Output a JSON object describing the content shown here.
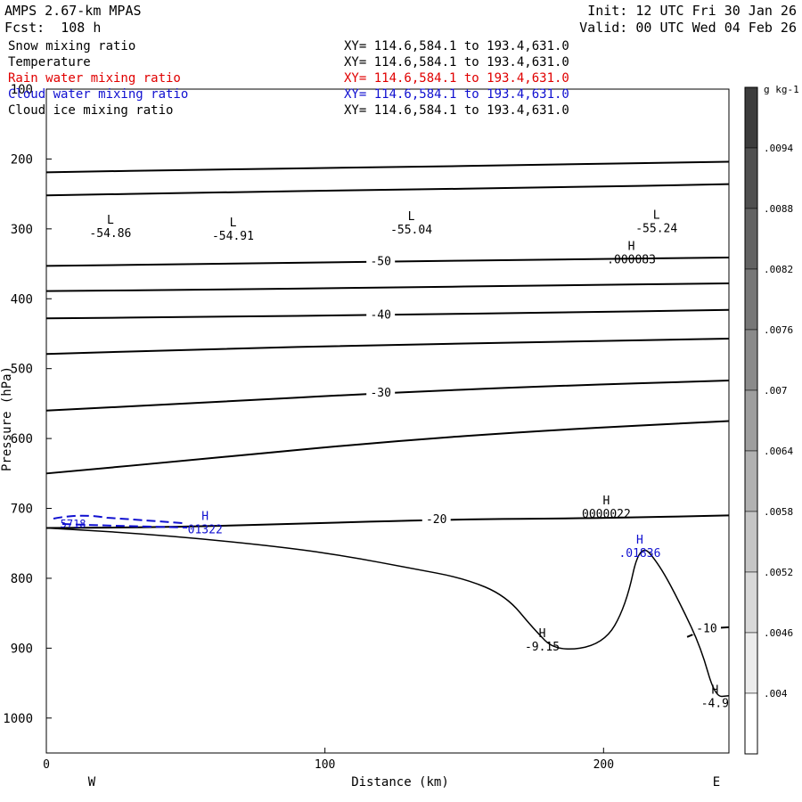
{
  "header": {
    "model": "AMPS 2.67-km MPAS",
    "init": "Init: 12 UTC Fri 30 Jan 26",
    "forecast": "Fcst:  108 h",
    "valid": "Valid: 00 UTC Wed 04 Feb 26"
  },
  "fields": [
    {
      "name": "Snow mixing ratio",
      "xy": "XY= 114.6,584.1 to 193.4,631.0",
      "color": "#000000"
    },
    {
      "name": "Temperature",
      "xy": "XY= 114.6,584.1 to 193.4,631.0",
      "color": "#000000"
    },
    {
      "name": "Rain water mixing ratio",
      "xy": "XY= 114.6,584.1 to 193.4,631.0",
      "color": "#e00000"
    },
    {
      "name": "Cloud water mixing ratio",
      "xy": "XY= 114.6,584.1 to 193.4,631.0",
      "color": "#1010d0"
    },
    {
      "name": "Cloud ice mixing ratio",
      "xy": "XY= 114.6,584.1 to 193.4,631.0",
      "color": "#000000"
    }
  ],
  "chart_data": {
    "type": "cross-section-contour",
    "xlabel": "Distance (km)",
    "ylabel": "Pressure (hPa)",
    "xlim": [
      0,
      245
    ],
    "ylim": [
      1050,
      100
    ],
    "x_ticks": [
      0,
      100,
      200
    ],
    "y_ticks": [
      100,
      200,
      300,
      400,
      500,
      600,
      700,
      800,
      900,
      1000
    ],
    "direction_labels": {
      "left": "W",
      "right": "E"
    },
    "temperature_isotherms": [
      {
        "label": "",
        "points": [
          [
            0,
            219
          ],
          [
            60,
            215
          ],
          [
            120,
            212
          ],
          [
            180,
            208
          ],
          [
            245,
            204
          ]
        ]
      },
      {
        "label": "",
        "points": [
          [
            0,
            252
          ],
          [
            60,
            248
          ],
          [
            120,
            244
          ],
          [
            180,
            241
          ],
          [
            245,
            236
          ]
        ]
      },
      {
        "label": "-50",
        "points": [
          [
            0,
            353
          ],
          [
            60,
            350
          ],
          [
            120,
            347
          ],
          [
            180,
            344
          ],
          [
            245,
            341
          ]
        ]
      },
      {
        "label": "",
        "points": [
          [
            0,
            389
          ],
          [
            60,
            387
          ],
          [
            120,
            384
          ],
          [
            180,
            381
          ],
          [
            245,
            378
          ]
        ]
      },
      {
        "label": "-40",
        "points": [
          [
            0,
            428
          ],
          [
            60,
            426
          ],
          [
            120,
            423
          ],
          [
            180,
            420
          ],
          [
            245,
            416
          ]
        ]
      },
      {
        "label": "",
        "points": [
          [
            0,
            479
          ],
          [
            60,
            472
          ],
          [
            120,
            466
          ],
          [
            180,
            462
          ],
          [
            245,
            457
          ]
        ]
      },
      {
        "label": "-30",
        "points": [
          [
            0,
            560
          ],
          [
            60,
            548
          ],
          [
            120,
            535
          ],
          [
            180,
            525
          ],
          [
            245,
            517
          ]
        ]
      },
      {
        "label": "",
        "points": [
          [
            0,
            650
          ],
          [
            60,
            628
          ],
          [
            120,
            605
          ],
          [
            180,
            588
          ],
          [
            245,
            575
          ]
        ]
      },
      {
        "label": "-20",
        "points": [
          [
            0,
            728
          ],
          [
            40,
            727
          ],
          [
            92,
            722
          ],
          [
            140,
            716
          ],
          [
            200,
            714
          ],
          [
            245,
            710
          ]
        ]
      },
      {
        "label": "-10",
        "points": [
          [
            230,
            884
          ],
          [
            237,
            872
          ],
          [
            245,
            870
          ]
        ]
      }
    ],
    "terrain_contour": [
      [
        0,
        728
      ],
      [
        30,
        735
      ],
      [
        60,
        745
      ],
      [
        90,
        758
      ],
      [
        110,
        770
      ],
      [
        130,
        785
      ],
      [
        150,
        800
      ],
      [
        165,
        825
      ],
      [
        175,
        873
      ],
      [
        183,
        905
      ],
      [
        200,
        895
      ],
      [
        208,
        840
      ],
      [
        213,
        748
      ],
      [
        220,
        780
      ],
      [
        228,
        840
      ],
      [
        235,
        900
      ],
      [
        240,
        970
      ],
      [
        245,
        968
      ]
    ],
    "mixing_ratio_colorbar": {
      "unit": "g kg-1",
      "ticks": [
        ".0094",
        ".0088",
        ".0082",
        ".0076",
        ".007",
        ".0064",
        ".0058",
        ".0052",
        ".0046",
        ".004"
      ]
    },
    "annotations": [
      {
        "type": "L",
        "value": "-54.86",
        "x": 23,
        "p": 300,
        "color": "#000000"
      },
      {
        "type": "L",
        "value": "-54.91",
        "x": 67,
        "p": 304,
        "color": "#000000"
      },
      {
        "type": "L",
        "value": "-55.04",
        "x": 131,
        "p": 295,
        "color": "#000000"
      },
      {
        "type": "L",
        "value": "-55.24",
        "x": 219,
        "p": 293,
        "color": "#000000"
      },
      {
        "type": "H",
        "value": ".000083",
        "x": 210,
        "p": 338,
        "color": "#000000"
      },
      {
        "type": "H",
        "value": "0000022",
        "x": 201,
        "p": 702,
        "color": "#000000"
      },
      {
        "type": "H",
        "value": ".01836",
        "x": 213,
        "p": 758,
        "color": "#1010d0"
      },
      {
        "type": "H",
        "value": "01322",
        "x": 57,
        "p": 724,
        "color": "#1010d0"
      },
      {
        "type": "H",
        "value": "-9.15",
        "x": 178,
        "p": 892,
        "color": "#000000"
      },
      {
        "type": "H",
        "value": "-4.9",
        "x": 240,
        "p": 973,
        "color": "#000000"
      },
      {
        "type": "label",
        "value": "5718",
        "x": 5,
        "p": 722,
        "color": "#1010d0"
      }
    ]
  }
}
